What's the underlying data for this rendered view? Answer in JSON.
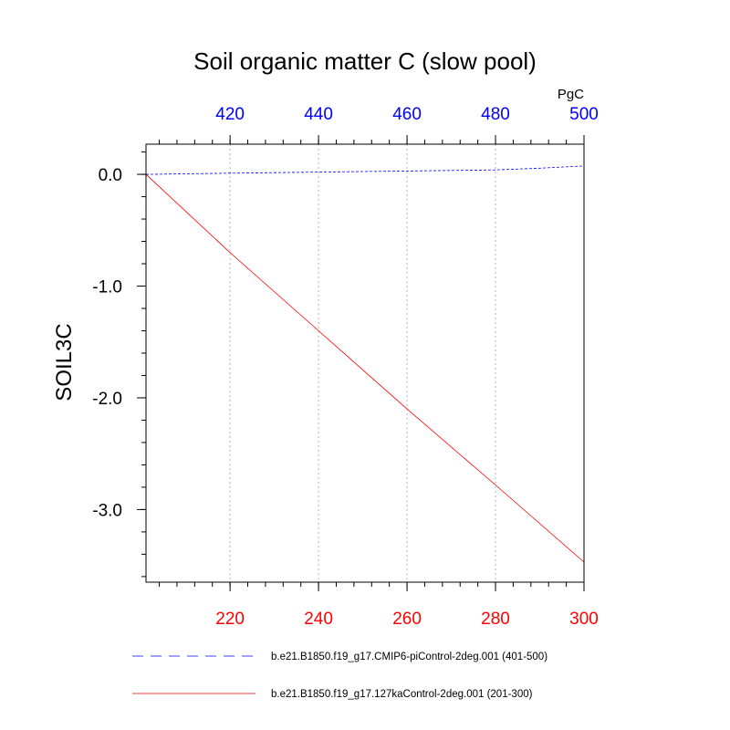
{
  "chart_data": {
    "type": "line",
    "title": "Soil organic matter C (slow pool)",
    "ylabel": "SOIL3C",
    "units": "PgC",
    "ylim": [
      -3.65,
      0.27
    ],
    "y_ticks": [
      0.0,
      -1.0,
      -2.0,
      -3.0
    ],
    "y_tick_labels": [
      "0.0",
      "-1.0",
      "-2.0",
      "-3.0"
    ],
    "y_minor_step": 0.2,
    "grid": "vertical dotted at major x ticks",
    "bottom_axis": {
      "range": [
        201,
        300
      ],
      "ticks": [
        220,
        240,
        260,
        280,
        300
      ],
      "tick_labels": [
        "220",
        "240",
        "260",
        "280",
        "300"
      ],
      "minor_step": 4,
      "color": "#ff0000"
    },
    "top_axis": {
      "range": [
        401,
        500
      ],
      "ticks": [
        420,
        440,
        460,
        480,
        500
      ],
      "tick_labels": [
        "420",
        "440",
        "460",
        "480",
        "500"
      ],
      "minor_step": 4,
      "color": "#0000ff"
    },
    "series": [
      {
        "name": "b.e21.B1850.f19_g17.CMIP6-piControl-2deg.001 (401-500)",
        "axis": "top",
        "color": "#0000ff",
        "dash": "dashed",
        "x": [
          401,
          420,
          440,
          460,
          480,
          490,
          500
        ],
        "y": [
          0.0,
          0.01,
          0.02,
          0.03,
          0.04,
          0.055,
          0.075
        ]
      },
      {
        "name": "b.e21.B1850.f19_g17.127kaControl-2deg.001 (201-300)",
        "axis": "bottom",
        "color": "#ff0000",
        "dash": "solid",
        "x": [
          201,
          220,
          240,
          260,
          280,
          300
        ],
        "y": [
          0.0,
          -0.7,
          -1.4,
          -2.1,
          -2.78,
          -3.47
        ]
      }
    ],
    "legend_position": "bottom"
  }
}
